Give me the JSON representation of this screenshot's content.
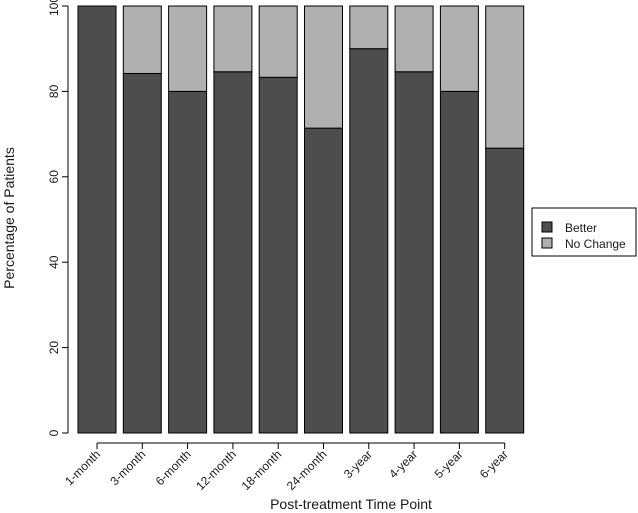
{
  "chart_data": {
    "type": "bar",
    "stacked": true,
    "title": "",
    "xlabel": "Post-treatment Time Point",
    "ylabel": "Percentage of Patients",
    "ylim": [
      0,
      100
    ],
    "yticks": [
      0,
      20,
      40,
      60,
      80,
      100
    ],
    "categories": [
      "1-month",
      "3-month",
      "6-month",
      "12-month",
      "18-month",
      "24-month",
      "3-year",
      "4-year",
      "5-year",
      "6-year"
    ],
    "series": [
      {
        "name": "Better",
        "color": "#4d4d4d",
        "values": [
          100,
          84.2,
          80,
          84.6,
          83.3,
          71.4,
          90,
          84.6,
          80,
          66.7
        ]
      },
      {
        "name": "No Change",
        "color": "#b0b0b0",
        "values": [
          0,
          15.8,
          20,
          15.4,
          16.7,
          28.6,
          10,
          15.4,
          20,
          33.3
        ]
      }
    ],
    "grid": false,
    "legend": "right"
  }
}
